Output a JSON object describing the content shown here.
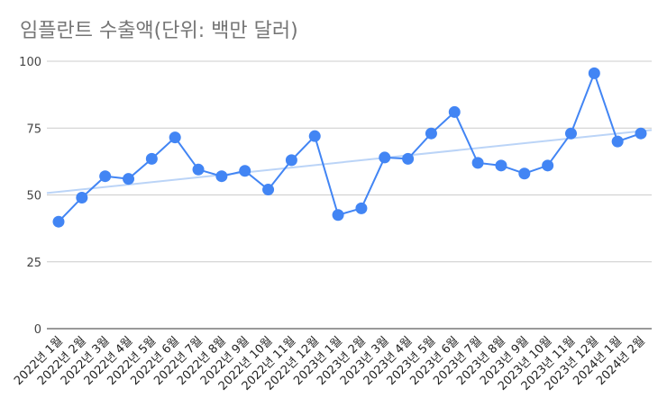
{
  "chart_data": {
    "type": "line",
    "title": "임플란트 수출액(단위: 백만 달러)",
    "xlabel": "",
    "ylabel": "",
    "categories": [
      "2022년 1월",
      "2022년 2월",
      "2022년 3월",
      "2022년 4월",
      "2022년 5월",
      "2022년 6월",
      "2022년 7월",
      "2022년 8월",
      "2022년 9월",
      "2022년 10월",
      "2022년 11월",
      "2022년 12월",
      "2023년 1월",
      "2023년 2월",
      "2023년 3월",
      "2023년 4월",
      "2023년 5월",
      "2023년 6월",
      "2023년 7월",
      "2023년 8월",
      "2023년 9월",
      "2023년 10월",
      "2023년 11월",
      "2023년 12월",
      "2024년 1월",
      "2024년 2월"
    ],
    "series": [
      {
        "values": [
          40,
          49,
          57,
          56,
          63.5,
          71.5,
          59.5,
          57,
          59,
          52,
          63,
          72,
          42.5,
          45,
          64,
          63.5,
          73,
          81,
          62,
          61,
          58,
          61,
          73,
          95.5,
          70,
          73
        ]
      }
    ],
    "trendline": {
      "type": "linear",
      "start": 50.7,
      "end": 74.3
    },
    "ylim": [
      0,
      100
    ],
    "yticks": [
      0,
      25,
      50,
      75,
      100
    ],
    "grid": true,
    "legend": "none",
    "colors": {
      "series": "#4285F4",
      "trend": "#BBD4F7",
      "grid": "#CCCCCC",
      "title": "#757575"
    }
  }
}
